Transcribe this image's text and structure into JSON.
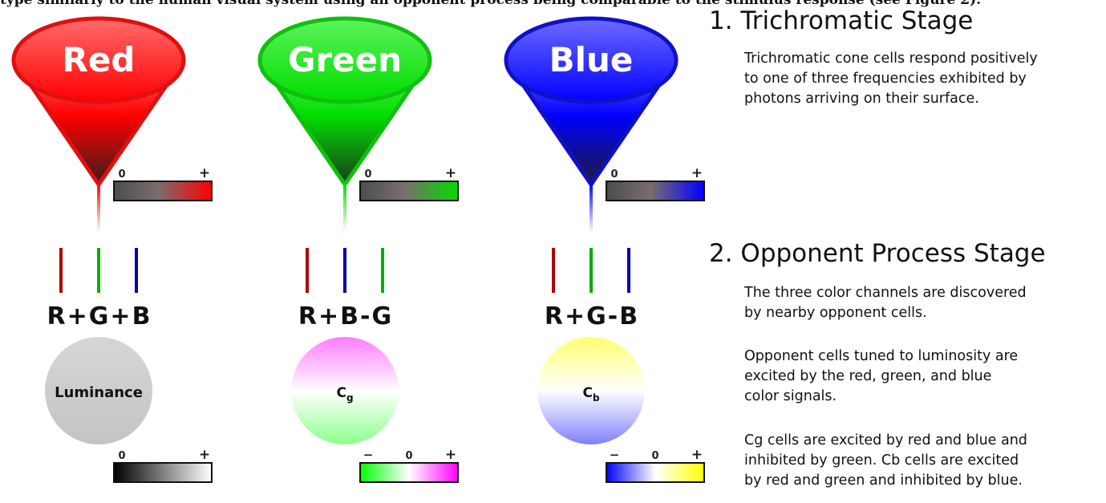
{
  "header_fragment": "type similarly to the human visual system using an opponent process being comparable to the stimulus response (see Figure 2).",
  "stage1": {
    "title": "1. Trichromatic Stage",
    "lines": [
      "Trichromatic cone cells respond positively",
      "to one of three frequencies exhibited by",
      "photons arriving on their surface."
    ]
  },
  "stage2": {
    "title": "2. Opponent Process Stage",
    "paragraphs": [
      [
        "The three color channels are discovered",
        "by nearby opponent cells."
      ],
      [
        "Opponent cells tuned to luminosity are",
        "excited by the red, green, and blue",
        "color signals."
      ],
      [
        "Cg cells are excited by red and blue and",
        "inhibited by green. Cb cells are excited",
        "by red and green and inhibited by blue."
      ]
    ]
  },
  "scale_symbols": {
    "zero": "0",
    "plus": "+",
    "minus": "−"
  },
  "cones": [
    {
      "label": "Red",
      "color": "#ff0000",
      "rim": "#e01010",
      "fill_top": "#ff6b6b",
      "tip": "#3a1c1c"
    },
    {
      "label": "Green",
      "color": "#00dd00",
      "rim": "#10c010",
      "fill_top": "#5cf35c",
      "tip": "#1c3a1c"
    },
    {
      "label": "Blue",
      "color": "#0000ff",
      "rim": "#1010c8",
      "fill_top": "#6b6bff",
      "tip": "#1c1c3a"
    }
  ],
  "channels": [
    {
      "formula": [
        {
          "text": "R"
        },
        {
          "text": "+"
        },
        {
          "text": "G"
        },
        {
          "text": "+"
        },
        {
          "text": "B"
        }
      ],
      "line_colors": [
        "#b00000",
        "#00b000",
        "#0000b0"
      ],
      "circle": {
        "label": "Luminance",
        "sub": "",
        "top": "#d0d0d0",
        "bottom": "#c8c8c8"
      },
      "scale": {
        "type": "unipolar",
        "from": "#000000",
        "to": "#ffffff"
      }
    },
    {
      "formula": [
        {
          "text": "R"
        },
        {
          "text": "+"
        },
        {
          "text": "B"
        },
        {
          "text": "-"
        },
        {
          "text": "G"
        }
      ],
      "line_colors": [
        "#b00000",
        "#0000b0",
        "#00b000"
      ],
      "circle": {
        "label": "C",
        "sub": "g",
        "top": "#ff7cff",
        "bottom": "#8cff8c"
      },
      "scale": {
        "type": "bipolar",
        "from": "#00ff00",
        "to": "#ff00ff"
      }
    },
    {
      "formula": [
        {
          "text": "R"
        },
        {
          "text": "+"
        },
        {
          "text": "G"
        },
        {
          "text": "-"
        },
        {
          "text": "B"
        }
      ],
      "line_colors": [
        "#b00000",
        "#00b000",
        "#0000b0"
      ],
      "circle": {
        "label": "C",
        "sub": "b",
        "top": "#ffff70",
        "bottom": "#8080ff"
      },
      "scale": {
        "type": "bipolar",
        "from": "#0000ff",
        "to": "#ffff00"
      }
    }
  ]
}
